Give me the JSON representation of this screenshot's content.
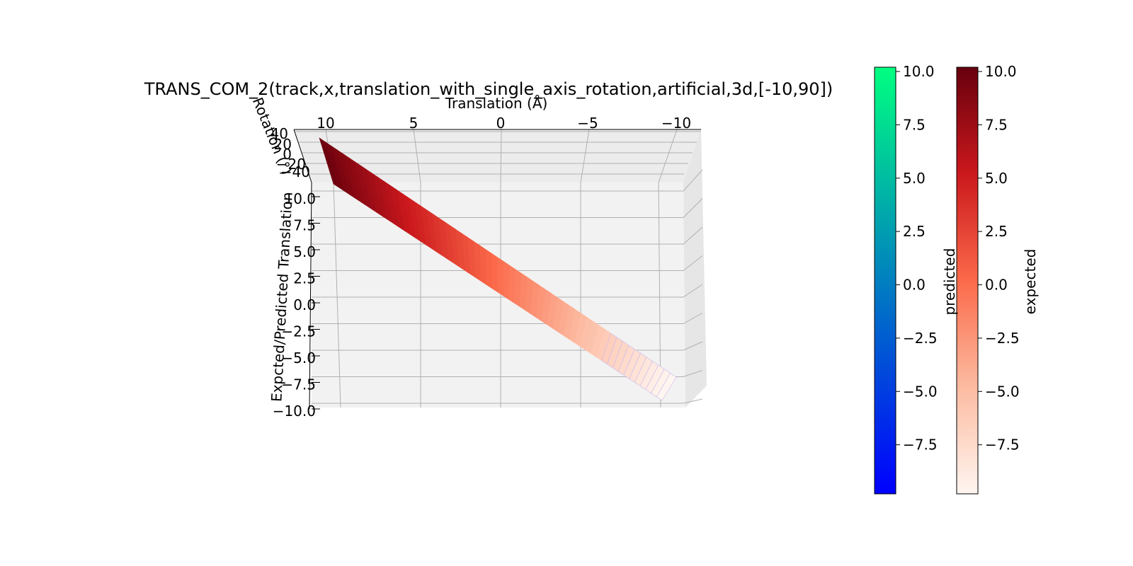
{
  "chart_data": {
    "type": "surface",
    "title": "TRANS_COM_2(track,x,translation_with_single_axis_rotation,artificial,3d,[-10,90])",
    "xlabel": "Translation (Å)",
    "ylabel": "Rotation (°)",
    "zlabel": "Expcted/Predicted Translation",
    "x_ticks": [
      "10",
      "5",
      "0",
      "−5",
      "−10"
    ],
    "y_ticks": [
      "40",
      "20",
      "0",
      "−20",
      "−40"
    ],
    "z_ticks": [
      "10.0",
      "7.5",
      "5.0",
      "2.5",
      "0.0",
      "−2.5",
      "−5.0",
      "−7.5",
      "−10.0"
    ],
    "xlim": [
      -10,
      10
    ],
    "zlim": [
      -10,
      10
    ],
    "series": [
      {
        "name": "expected",
        "colormap": "Reds",
        "relation": "z = x",
        "x": [
          10,
          5,
          0,
          -5,
          -10
        ],
        "z": [
          10,
          5,
          0,
          -5,
          -10
        ]
      },
      {
        "name": "predicted",
        "colormap": "winter",
        "relation": "z = x",
        "x": [
          10,
          5,
          0,
          -5,
          -10
        ],
        "z": [
          10,
          5,
          0,
          -5,
          -10
        ]
      }
    ],
    "colorbars": [
      {
        "label": "predicted",
        "ticks": [
          "10.0",
          "7.5",
          "5.0",
          "2.5",
          "0.0",
          "−2.5",
          "−5.0",
          "−7.5"
        ],
        "colors": [
          "#00ff80",
          "#0000ff"
        ]
      },
      {
        "label": "expected",
        "ticks": [
          "10.0",
          "7.5",
          "5.0",
          "2.5",
          "0.0",
          "−2.5",
          "−5.0",
          "−7.5"
        ],
        "colors": [
          "#67000d",
          "#cb181d",
          "#fb6a4a",
          "#fcbba1",
          "#fff5f0"
        ]
      }
    ],
    "vmin": -9.8,
    "vmax": 10.2,
    "grid": true
  }
}
